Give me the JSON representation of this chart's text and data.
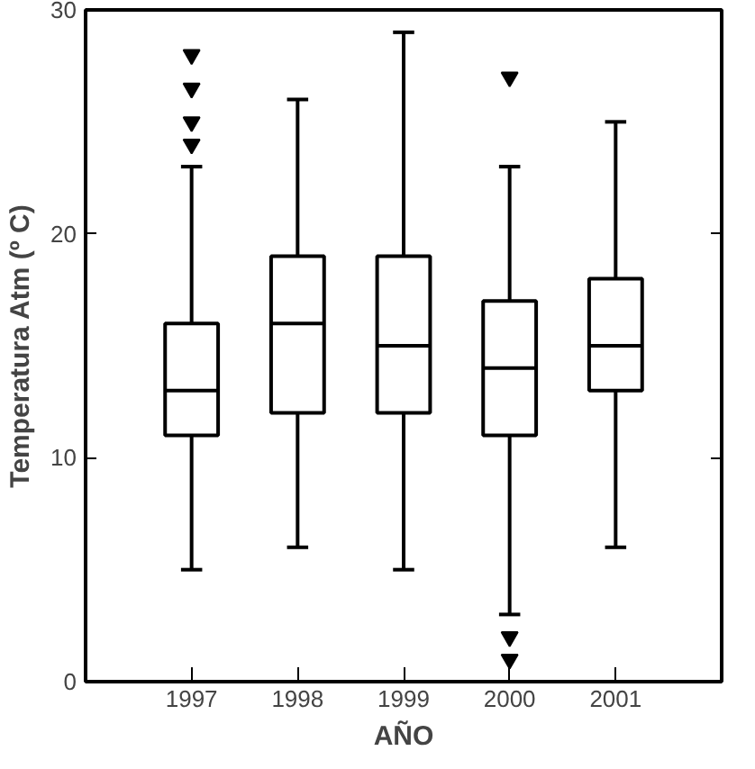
{
  "chart_data": {
    "type": "box",
    "xlabel": "AÑO",
    "ylabel": "Temperatura Atm (º C)",
    "categories": [
      "1997",
      "1998",
      "1999",
      "2000",
      "2001"
    ],
    "boxes": [
      {
        "low": 5,
        "q1": 11,
        "median": 13,
        "q3": 16,
        "high": 23,
        "outliers": [
          24,
          25,
          26.5,
          28
        ]
      },
      {
        "low": 6,
        "q1": 12,
        "median": 16,
        "q3": 19,
        "high": 26
      },
      {
        "low": 5,
        "q1": 12,
        "median": 15,
        "q3": 19,
        "high": 29
      },
      {
        "low": 3,
        "q1": 11,
        "median": 14,
        "q3": 17,
        "high": 23,
        "outliers": [
          27,
          2,
          1
        ]
      },
      {
        "low": 6,
        "q1": 13,
        "median": 15,
        "q3": 18,
        "high": 25
      }
    ],
    "color": "#000000",
    "ylim": [
      0,
      30
    ],
    "yticks": [
      0,
      10,
      20,
      30
    ],
    "grid": false,
    "marker": "triangle"
  }
}
